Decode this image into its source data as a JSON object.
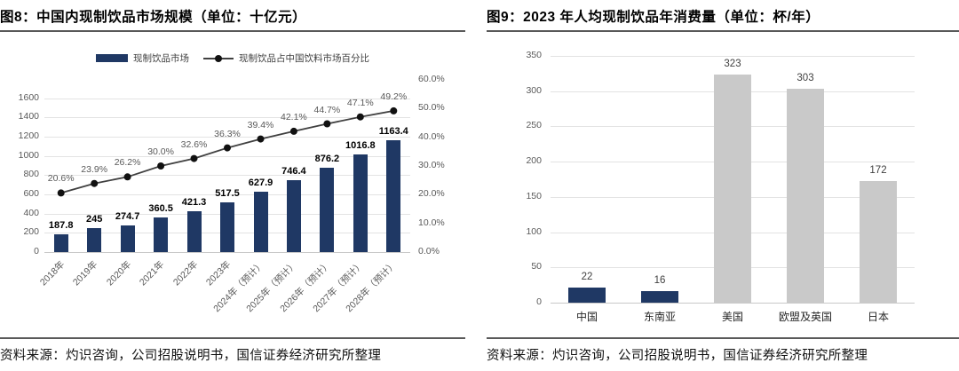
{
  "figure8": {
    "tag": "图8：",
    "title": "中国内现制饮品市场规模（单位：十亿元）",
    "source": "资料来源：灼识咨询，公司招股说明书，国信证券经济研究所整理"
  },
  "figure9": {
    "tag": "图9：",
    "title": "2023 年人均现制饮品年消费量（单位：杯/年）",
    "source": "资料来源：灼识咨询，公司招股说明书，国信证券经济研究所整理"
  },
  "colors": {
    "bar_navy": "#1F3864",
    "bar_grey": "#C9C9C9",
    "line": "#404040",
    "marker": "#111111"
  },
  "chart_data": [
    {
      "id": "fig8",
      "type": "combo-bar-line",
      "title": "中国内现制饮品市场规模（单位：十亿元）",
      "categories": [
        "2018年",
        "2019年",
        "2020年",
        "2021年",
        "2022年",
        "2023年",
        "2024年（预计）",
        "2025年（预计）",
        "2026年（预计）",
        "2027年（预计）",
        "2028年（预计）"
      ],
      "series": [
        {
          "name": "现制饮品市场",
          "type": "bar",
          "color": "#1F3864",
          "axis": "primary",
          "values": [
            187.8,
            245,
            274.7,
            360.5,
            421.3,
            517.5,
            627.9,
            746.4,
            876.2,
            1016.8,
            1163.4
          ],
          "labels": [
            "187.8",
            "245",
            "274.7",
            "360.5",
            "421.3",
            "517.5",
            "627.9",
            "746.4",
            "876.2",
            "1016.8",
            "1163.4"
          ]
        },
        {
          "name": "现制饮品占中国饮料市场百分比",
          "type": "line",
          "color": "#404040",
          "marker_color": "#111111",
          "axis": "secondary",
          "values": [
            20.6,
            23.9,
            26.2,
            30.0,
            32.6,
            36.3,
            39.4,
            42.1,
            44.7,
            47.1,
            49.2
          ],
          "labels": [
            "20.6%",
            "23.9%",
            "26.2%",
            "30.0%",
            "32.6%",
            "36.3%",
            "39.4%",
            "42.1%",
            "44.7%",
            "47.1%",
            "49.2%"
          ]
        }
      ],
      "left_axis": {
        "ticks": [
          0,
          200,
          400,
          600,
          800,
          1000,
          1200,
          1400,
          1600
        ],
        "range": [
          0,
          1600
        ]
      },
      "right_axis": {
        "ticks": [
          "0.0%",
          "10.0%",
          "20.0%",
          "30.0%",
          "40.0%",
          "50.0%",
          "60.0%"
        ],
        "range": [
          0,
          60
        ]
      },
      "legend_position": "top",
      "grid": "horizontal"
    },
    {
      "id": "fig9",
      "type": "bar",
      "title": "2023 年人均现制饮品年消费量（单位：杯/年）",
      "categories": [
        "中国",
        "东南亚",
        "美国",
        "欧盟及英国",
        "日本"
      ],
      "values": [
        22,
        16,
        323,
        303,
        172
      ],
      "labels": [
        "22",
        "16",
        "323",
        "303",
        "172"
      ],
      "bar_colors": [
        "#1F3864",
        "#1F3864",
        "#C9C9C9",
        "#C9C9C9",
        "#C9C9C9"
      ],
      "yticks": [
        0,
        50,
        100,
        150,
        200,
        250,
        300,
        350
      ],
      "ylim": [
        0,
        350
      ],
      "grid": "horizontal",
      "legend": "none"
    }
  ]
}
